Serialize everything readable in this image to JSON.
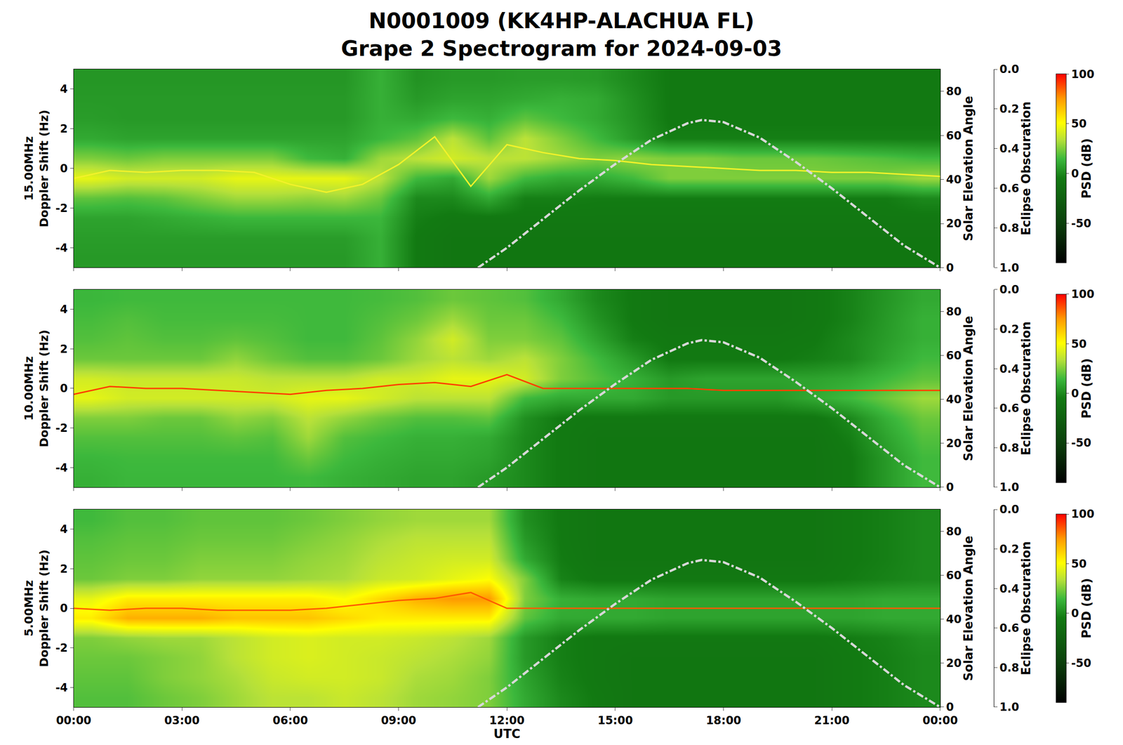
{
  "chart_data": {
    "type": "heatmap",
    "title": [
      "N0001009 (KK4HP-ALACHUA FL)",
      "Grape 2 Spectrogram for 2024-09-03"
    ],
    "xlabel": "UTC",
    "xlim": [
      0,
      24
    ],
    "xticks": [
      {
        "value": 0,
        "label": "00:00"
      },
      {
        "value": 3,
        "label": "03:00"
      },
      {
        "value": 6,
        "label": "06:00"
      },
      {
        "value": 9,
        "label": "09:00"
      },
      {
        "value": 12,
        "label": "12:00"
      },
      {
        "value": 15,
        "label": "15:00"
      },
      {
        "value": 18,
        "label": "18:00"
      },
      {
        "value": 21,
        "label": "21:00"
      },
      {
        "value": 24,
        "label": "00:00"
      }
    ],
    "ylim": [
      -5,
      5
    ],
    "yticks": [
      -4,
      -2,
      0,
      2,
      4
    ],
    "y2label": "Solar Elevation Angle",
    "y2lim": [
      0,
      90
    ],
    "y2ticks": [
      0,
      20,
      40,
      60,
      80
    ],
    "y3label": "Eclipse Obscuration",
    "y3lim": [
      1,
      0
    ],
    "y3ticks": [
      {
        "value": 0,
        "label": "0.0"
      },
      {
        "value": 0.2,
        "label": "0.2"
      },
      {
        "value": 0.4,
        "label": "0.4"
      },
      {
        "value": 0.6,
        "label": "0.6"
      },
      {
        "value": 0.8,
        "label": "0.8"
      },
      {
        "value": 1,
        "label": "1.0"
      }
    ],
    "zlabel": "PSD (dB)",
    "zlim": [
      -90,
      100
    ],
    "zticks": [
      -50,
      0,
      50,
      100
    ],
    "grid": true,
    "x": [
      0.5,
      1.5,
      2.5,
      3.5,
      4.5,
      5.5,
      6.5,
      7.5,
      8.5,
      9.5,
      10.5,
      11.5,
      12.5,
      13.5,
      14.5,
      15.5,
      16.5,
      17.5,
      18.5,
      19.5,
      20.5,
      21.5,
      22.5,
      23.5
    ],
    "y": [
      -4.5,
      -3.5,
      -2.5,
      -1.5,
      -0.5,
      0.5,
      1.5,
      2.5,
      3.5,
      4.5
    ],
    "elevation": {
      "x": [
        11.2,
        12,
        13,
        14,
        15,
        16,
        17,
        17.4,
        18,
        19,
        20,
        21,
        22,
        23,
        24
      ],
      "values": [
        0,
        9,
        22,
        35,
        47,
        58,
        65.5,
        67,
        66,
        59,
        48,
        36,
        23,
        10,
        0
      ],
      "color": "#d8d8d8",
      "line_style": "dashdot",
      "axis": "y2"
    },
    "panels": [
      {
        "ylabel": [
          "15.00MHz",
          "Doppler Shift (Hz)"
        ],
        "z": [
          [
            5,
            5,
            5,
            5,
            5,
            5,
            5,
            5,
            12,
            -5,
            -8,
            -8,
            -8,
            -8,
            -8,
            -8,
            -8,
            -8,
            -8,
            -8,
            -8,
            -8,
            -8,
            -8
          ],
          [
            6,
            6,
            6,
            6,
            6,
            6,
            6,
            6,
            12,
            -5,
            -8,
            -8,
            -8,
            -8,
            -8,
            -8,
            -8,
            -8,
            -8,
            -8,
            -8,
            -8,
            -8,
            -8
          ],
          [
            8,
            8,
            10,
            12,
            14,
            14,
            14,
            14,
            14,
            -3,
            -6,
            -6,
            -6,
            -6,
            -6,
            -6,
            -6,
            -6,
            -6,
            -6,
            -6,
            -6,
            -6,
            -6
          ],
          [
            20,
            18,
            20,
            25,
            30,
            30,
            28,
            30,
            22,
            0,
            0,
            10,
            -3,
            -3,
            -4,
            -4,
            -4,
            -4,
            -4,
            -4,
            -4,
            -4,
            -4,
            0
          ],
          [
            45,
            40,
            40,
            40,
            45,
            45,
            45,
            45,
            35,
            15,
            10,
            30,
            15,
            10,
            10,
            15,
            25,
            25,
            25,
            25,
            25,
            25,
            25,
            30
          ],
          [
            25,
            22,
            25,
            25,
            25,
            25,
            15,
            12,
            30,
            35,
            40,
            35,
            35,
            30,
            25,
            28,
            25,
            25,
            22,
            22,
            22,
            20,
            18,
            15
          ],
          [
            10,
            8,
            8,
            8,
            8,
            8,
            8,
            8,
            14,
            20,
            35,
            20,
            35,
            25,
            15,
            5,
            -3,
            -3,
            -3,
            -3,
            -3,
            -3,
            -3,
            -3
          ],
          [
            6,
            5,
            5,
            5,
            5,
            5,
            5,
            5,
            12,
            10,
            15,
            12,
            20,
            15,
            10,
            3,
            -5,
            -5,
            -5,
            -5,
            -5,
            -5,
            -5,
            -5
          ],
          [
            5,
            5,
            5,
            5,
            5,
            5,
            5,
            5,
            12,
            5,
            8,
            8,
            10,
            12,
            10,
            2,
            -5,
            -5,
            -5,
            -5,
            -5,
            -5,
            -5,
            -5
          ],
          [
            4,
            4,
            4,
            4,
            4,
            4,
            4,
            4,
            12,
            3,
            5,
            5,
            6,
            6,
            5,
            0,
            -5,
            -5,
            -5,
            -5,
            -5,
            -5,
            -5,
            -5
          ]
        ],
        "series": [
          {
            "x": [
              0,
              1,
              2,
              3,
              4,
              5,
              6,
              7,
              8,
              9,
              10,
              11,
              12,
              13,
              14,
              15,
              16,
              17,
              18,
              19,
              20,
              21,
              22,
              23,
              24
            ],
            "values": [
              -0.5,
              -0.1,
              -0.2,
              -0.1,
              -0.1,
              -0.2,
              -0.8,
              -1.2,
              -0.8,
              0.2,
              1.6,
              -0.9,
              1.2,
              0.8,
              0.5,
              0.4,
              0.2,
              0.1,
              0.0,
              -0.1,
              -0.1,
              -0.2,
              -0.2,
              -0.3,
              -0.4
            ],
            "color": "#f2f22a",
            "line_style": "solid",
            "axis": "y"
          }
        ]
      },
      {
        "ylabel": [
          "10.00MHz",
          "Doppler Shift (Hz)"
        ],
        "z": [
          [
            12,
            14,
            14,
            14,
            14,
            14,
            15,
            12,
            10,
            8,
            8,
            5,
            0,
            -5,
            -8,
            -8,
            -8,
            -8,
            -8,
            -8,
            -8,
            -5,
            5,
            15
          ],
          [
            14,
            15,
            15,
            15,
            15,
            15,
            22,
            15,
            12,
            10,
            10,
            8,
            0,
            -5,
            -8,
            -8,
            -8,
            -8,
            -8,
            -8,
            -8,
            -5,
            5,
            15
          ],
          [
            18,
            18,
            18,
            18,
            20,
            18,
            30,
            18,
            15,
            12,
            12,
            10,
            0,
            -5,
            -8,
            -8,
            -8,
            -8,
            -8,
            -8,
            -8,
            -3,
            8,
            18
          ],
          [
            25,
            25,
            22,
            22,
            28,
            25,
            35,
            28,
            22,
            18,
            18,
            20,
            2,
            -5,
            -6,
            -6,
            -6,
            -6,
            -6,
            -6,
            -6,
            0,
            12,
            22
          ],
          [
            45,
            40,
            40,
            40,
            40,
            40,
            45,
            45,
            40,
            35,
            35,
            35,
            15,
            10,
            10,
            10,
            5,
            5,
            5,
            5,
            10,
            15,
            22,
            30
          ],
          [
            40,
            38,
            38,
            38,
            38,
            35,
            35,
            35,
            40,
            40,
            45,
            45,
            40,
            25,
            18,
            12,
            5,
            8,
            8,
            8,
            8,
            10,
            15,
            20
          ],
          [
            22,
            22,
            22,
            22,
            28,
            22,
            18,
            18,
            22,
            30,
            35,
            30,
            35,
            25,
            15,
            5,
            -5,
            -5,
            -5,
            -5,
            -3,
            0,
            8,
            15
          ],
          [
            18,
            20,
            18,
            18,
            20,
            18,
            15,
            15,
            20,
            28,
            40,
            25,
            25,
            20,
            8,
            -3,
            -6,
            -6,
            -6,
            -6,
            -5,
            0,
            6,
            12
          ],
          [
            16,
            18,
            16,
            16,
            16,
            16,
            15,
            15,
            18,
            22,
            30,
            22,
            22,
            15,
            3,
            -5,
            -8,
            -8,
            -8,
            -8,
            -6,
            -2,
            5,
            12
          ],
          [
            14,
            15,
            15,
            15,
            15,
            15,
            15,
            15,
            16,
            18,
            22,
            20,
            18,
            10,
            0,
            -5,
            -8,
            -8,
            -8,
            -8,
            -6,
            -2,
            4,
            10
          ]
        ],
        "series": [
          {
            "x": [
              0,
              1,
              2,
              3,
              4,
              5,
              6,
              7,
              8,
              9,
              10,
              11,
              12,
              13,
              14,
              15,
              16,
              17,
              18,
              19,
              20,
              21,
              22,
              23,
              24
            ],
            "values": [
              -0.3,
              0.1,
              0.0,
              0.0,
              -0.1,
              -0.2,
              -0.3,
              -0.1,
              0.0,
              0.2,
              0.3,
              0.1,
              0.7,
              0.0,
              0.0,
              0.0,
              0.0,
              0.0,
              -0.1,
              -0.1,
              -0.1,
              -0.1,
              -0.1,
              -0.1,
              -0.1
            ],
            "color": "#ff4000",
            "line_style": "solid",
            "axis": "y"
          }
        ]
      },
      {
        "ylabel": [
          "5.00MHz",
          "Doppler Shift (Hz)"
        ],
        "z": [
          [
            18,
            18,
            22,
            25,
            30,
            35,
            35,
            38,
            35,
            30,
            28,
            25,
            10,
            0,
            -5,
            -8,
            -8,
            -8,
            -8,
            -8,
            -8,
            -5,
            -3,
            0
          ],
          [
            20,
            20,
            25,
            28,
            32,
            38,
            40,
            40,
            38,
            32,
            30,
            25,
            8,
            -2,
            -6,
            -8,
            -8,
            -8,
            -8,
            -8,
            -8,
            -5,
            -3,
            0
          ],
          [
            22,
            22,
            25,
            28,
            35,
            40,
            42,
            40,
            38,
            35,
            32,
            28,
            5,
            -3,
            -6,
            -8,
            -8,
            -8,
            -8,
            -8,
            -8,
            -5,
            -3,
            0
          ],
          [
            25,
            28,
            30,
            30,
            35,
            40,
            42,
            40,
            40,
            38,
            35,
            30,
            5,
            -3,
            -6,
            -6,
            -6,
            -6,
            -6,
            -6,
            -6,
            -4,
            -2,
            2
          ],
          [
            55,
            70,
            70,
            70,
            65,
            65,
            65,
            60,
            55,
            55,
            55,
            55,
            20,
            10,
            10,
            10,
            8,
            8,
            8,
            8,
            8,
            8,
            10,
            10
          ],
          [
            45,
            55,
            55,
            55,
            55,
            55,
            55,
            50,
            60,
            70,
            75,
            75,
            25,
            12,
            10,
            10,
            8,
            8,
            8,
            8,
            8,
            8,
            10,
            10
          ],
          [
            22,
            25,
            25,
            28,
            28,
            28,
            30,
            32,
            38,
            40,
            45,
            50,
            25,
            -2,
            -6,
            -6,
            -6,
            -6,
            -6,
            -6,
            -6,
            -4,
            -2,
            0
          ],
          [
            20,
            22,
            22,
            25,
            25,
            25,
            28,
            30,
            35,
            38,
            40,
            40,
            10,
            -4,
            -8,
            -8,
            -8,
            -8,
            -8,
            -8,
            -8,
            -5,
            -3,
            0
          ],
          [
            18,
            20,
            20,
            22,
            22,
            22,
            25,
            28,
            32,
            35,
            35,
            35,
            5,
            -5,
            -8,
            -8,
            -8,
            -8,
            -8,
            -8,
            -8,
            -5,
            -3,
            0
          ],
          [
            15,
            18,
            18,
            20,
            20,
            20,
            22,
            25,
            28,
            30,
            30,
            30,
            2,
            -5,
            -8,
            -8,
            -8,
            -8,
            -8,
            -8,
            -8,
            -5,
            -3,
            0
          ]
        ],
        "series": [
          {
            "x": [
              0,
              1,
              2,
              3,
              4,
              5,
              6,
              7,
              8,
              9,
              10,
              11,
              12,
              13,
              14,
              15,
              16,
              17,
              18,
              19,
              20,
              21,
              22,
              23,
              24
            ],
            "values": [
              0.0,
              -0.1,
              0.0,
              0.0,
              -0.1,
              -0.1,
              -0.1,
              0.0,
              0.2,
              0.4,
              0.5,
              0.8,
              0.0,
              0.0,
              0.0,
              0.0,
              0.0,
              0.0,
              0.0,
              0.0,
              0.0,
              0.0,
              0.0,
              0.0,
              0.0
            ],
            "color": "#ff5a00",
            "line_style": "solid",
            "axis": "y"
          }
        ]
      }
    ]
  }
}
